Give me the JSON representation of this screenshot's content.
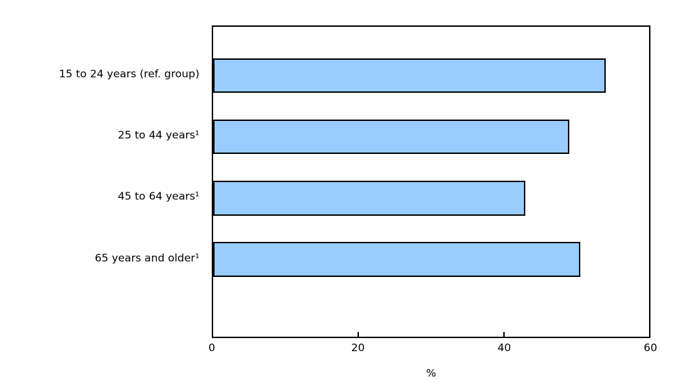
{
  "chart_data": {
    "type": "bar",
    "orientation": "horizontal",
    "title": "",
    "xlabel": "%",
    "ylabel": "",
    "categories": [
      "15 to 24 years (ref. group)",
      "25 to 44 years¹",
      "45 to 64 years¹",
      "65 years and older¹"
    ],
    "values": [
      54,
      49,
      43,
      50.5
    ],
    "xlim": [
      0,
      60
    ],
    "x_ticks": [
      0,
      20,
      40,
      60
    ],
    "grid": false,
    "legend": "none",
    "frame": true,
    "bar_color": "#99CCFF",
    "bar_border_color": "#000000",
    "axis_color": "#000000",
    "text_color": "#000000"
  }
}
